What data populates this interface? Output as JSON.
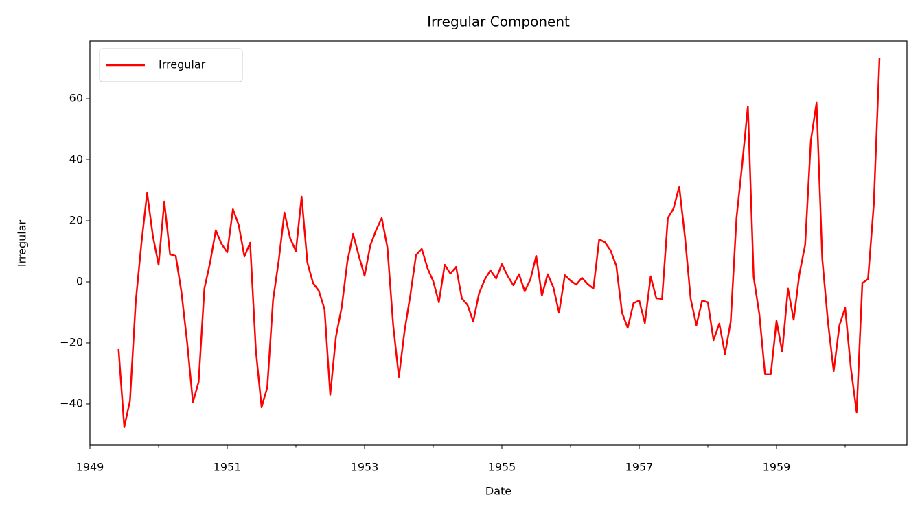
{
  "chart_data": {
    "type": "line",
    "title": "Irregular Component",
    "xlabel": "Date",
    "ylabel": "Irregular",
    "x": [
      1949.417,
      1949.5,
      1949.583,
      1949.667,
      1949.75,
      1949.833,
      1949.917,
      1950,
      1950.083,
      1950.167,
      1950.25,
      1950.333,
      1950.417,
      1950.5,
      1950.583,
      1950.667,
      1950.75,
      1950.833,
      1950.917,
      1951,
      1951.083,
      1951.167,
      1951.25,
      1951.333,
      1951.417,
      1951.5,
      1951.583,
      1951.667,
      1951.75,
      1951.833,
      1951.917,
      1952,
      1952.083,
      1952.167,
      1952.25,
      1952.333,
      1952.417,
      1952.5,
      1952.583,
      1952.667,
      1952.75,
      1952.833,
      1952.917,
      1953,
      1953.083,
      1953.167,
      1953.25,
      1953.333,
      1953.417,
      1953.5,
      1953.583,
      1953.667,
      1953.75,
      1953.833,
      1953.917,
      1954,
      1954.083,
      1954.167,
      1954.25,
      1954.333,
      1954.417,
      1954.5,
      1954.583,
      1954.667,
      1954.75,
      1954.833,
      1954.917,
      1955,
      1955.083,
      1955.167,
      1955.25,
      1955.333,
      1955.417,
      1955.5,
      1955.583,
      1955.667,
      1955.75,
      1955.833,
      1955.917,
      1956,
      1956.083,
      1956.167,
      1956.25,
      1956.333,
      1956.417,
      1956.5,
      1956.583,
      1956.667,
      1956.75,
      1956.833,
      1956.917,
      1957,
      1957.083,
      1957.167,
      1957.25,
      1957.333,
      1957.417,
      1957.5,
      1957.583,
      1957.667,
      1957.75,
      1957.833,
      1957.917,
      1958,
      1958.083,
      1958.167,
      1958.25,
      1958.333,
      1958.417,
      1958.5,
      1958.583,
      1958.667,
      1958.75,
      1958.833,
      1958.917,
      1959,
      1959.083,
      1959.167,
      1959.25,
      1959.333,
      1959.417,
      1959.5,
      1959.583,
      1959.667,
      1959.75,
      1959.833,
      1959.917,
      1960,
      1960.083,
      1960.167,
      1960.25,
      1960.333,
      1960.417,
      1960.5
    ],
    "series": [
      {
        "name": "Irregular",
        "color": "#ff0000",
        "values": [
          -22,
          -47.6,
          -39,
          -6.5,
          12.6,
          29.2,
          15,
          5.6,
          26.3,
          9,
          8.5,
          -3.4,
          -20,
          -39.5,
          -32.8,
          -2.2,
          6.3,
          16.9,
          12.4,
          9.7,
          23.8,
          18.6,
          8.3,
          12.8,
          -22.5,
          -41.1,
          -34.6,
          -6,
          7,
          22.7,
          14.2,
          10.1,
          27.9,
          6.3,
          -0.4,
          -2.9,
          -9,
          -37,
          -18,
          -8.3,
          6.7,
          15.7,
          8.5,
          2,
          11.9,
          16.9,
          20.9,
          11.2,
          -14.2,
          -31.2,
          -16,
          -4.3,
          8.8,
          10.8,
          4.5,
          0.2,
          -6.7,
          5.6,
          2.7,
          4.9,
          -5.4,
          -7.6,
          -13,
          -3.8,
          0.7,
          3.8,
          1.1,
          5.8,
          2,
          -1.1,
          2.5,
          -3.1,
          0.9,
          8.5,
          -4.5,
          2.5,
          -1.8,
          -10.1,
          2.2,
          0.4,
          -0.9,
          1.3,
          -0.7,
          -2.2,
          13.9,
          13,
          10.3,
          5.2,
          -10.1,
          -15.1,
          -7,
          -6.1,
          -13.5,
          1.8,
          -5.4,
          -5.6,
          20.9,
          24,
          31.2,
          14.6,
          -5.6,
          -14.2,
          -6.1,
          -6.7,
          -19.1,
          -13.7,
          -23.6,
          -13,
          20.9,
          38.4,
          57.5,
          1.6,
          -10.6,
          -30.3,
          -30.3,
          -12.8,
          -22.9,
          -2.2,
          -12.4,
          2.5,
          12.1,
          46.3,
          58.7,
          7.4,
          -13.3,
          -29.2,
          -14.2,
          -8.5,
          -28.3,
          -42.7,
          -0.4,
          0.9,
          25.4,
          73.3
        ]
      }
    ],
    "xlim": [
      1949,
      1960.9
    ],
    "xticks": [
      1949,
      1951,
      1953,
      1955,
      1957,
      1959
    ],
    "xminor_ticks": [
      1950,
      1952,
      1954,
      1956,
      1958,
      1960
    ],
    "ylim": [
      -53.5,
      78.9
    ],
    "yticks": [
      {
        "value": -40,
        "label": "−40"
      },
      {
        "value": -20,
        "label": "−20"
      },
      0,
      20,
      40,
      60
    ],
    "legend": "upper left",
    "grid": false
  }
}
